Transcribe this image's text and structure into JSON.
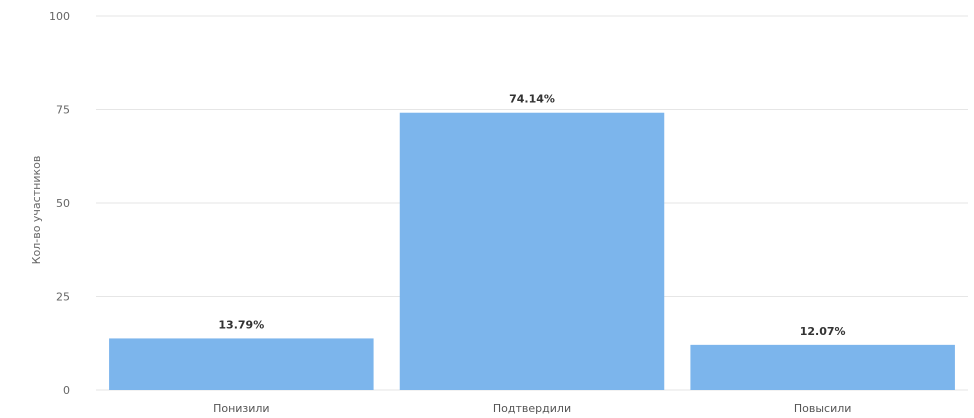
{
  "chart_data": {
    "type": "bar",
    "categories": [
      "Понизили",
      "Подтвердили",
      "Повысили"
    ],
    "values": [
      13.79,
      74.14,
      12.07
    ],
    "data_labels": [
      "13.79%",
      "74.14%",
      "12.07%"
    ],
    "title": "",
    "xlabel": "",
    "ylabel": "Кол-во участников",
    "ylim": [
      0,
      100
    ],
    "yticks": [
      0,
      25,
      50,
      75,
      100
    ],
    "ytick_labels": [
      "0",
      "25",
      "50",
      "75",
      "100"
    ],
    "grid": true,
    "legend": "none",
    "bar_color": "#7cb5ec"
  }
}
